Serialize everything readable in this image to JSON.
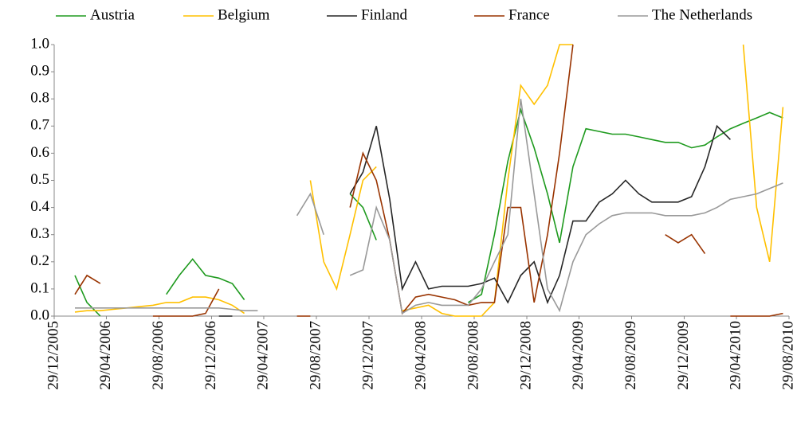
{
  "chart_data": {
    "type": "line",
    "x": [
      "15/01/2006",
      "15/02/2006",
      "15/03/2006",
      "15/04/2006",
      "15/05/2006",
      "15/06/2006",
      "15/07/2006",
      "15/08/2006",
      "15/09/2006",
      "15/10/2006",
      "15/11/2006",
      "15/12/2006",
      "15/01/2007",
      "15/02/2007",
      "15/03/2007",
      "15/04/2007",
      "15/05/2007",
      "15/06/2007",
      "15/07/2007",
      "15/08/2007",
      "15/09/2007",
      "15/10/2007",
      "15/11/2007",
      "15/12/2007",
      "15/01/2008",
      "15/02/2008",
      "15/03/2008",
      "15/04/2008",
      "15/05/2008",
      "15/06/2008",
      "15/07/2008",
      "15/08/2008",
      "15/09/2008",
      "15/10/2008",
      "15/11/2008",
      "15/12/2008",
      "15/01/2009",
      "15/02/2009",
      "15/03/2009",
      "15/04/2009",
      "15/05/2009",
      "15/06/2009",
      "15/07/2009",
      "15/08/2009",
      "15/09/2009",
      "15/10/2009",
      "15/11/2009",
      "15/12/2009",
      "15/01/2010",
      "15/02/2010",
      "15/03/2010",
      "15/04/2010",
      "15/05/2010",
      "15/06/2010",
      "15/07/2010",
      "15/08/2010"
    ],
    "series": [
      {
        "name": "Austria",
        "color": "#1e9a1e",
        "values": [
          null,
          0.15,
          0.05,
          0,
          null,
          null,
          null,
          null,
          0.08,
          0.15,
          0.21,
          0.15,
          0.14,
          0.12,
          0.06,
          null,
          null,
          null,
          null,
          null,
          null,
          null,
          0.45,
          0.4,
          0.28,
          null,
          null,
          null,
          null,
          null,
          null,
          0.05,
          0.08,
          0.3,
          0.57,
          0.76,
          0.62,
          0.45,
          0.27,
          0.55,
          0.69,
          0.68,
          0.67,
          0.67,
          0.66,
          0.65,
          0.64,
          0.64,
          0.62,
          0.63,
          0.66,
          0.69,
          0.71,
          0.73,
          0.75,
          0.73
        ]
      },
      {
        "name": "Belgium",
        "color": "#ffc000",
        "values": [
          null,
          0.015,
          0.02,
          0.02,
          0.025,
          0.03,
          0.035,
          0.04,
          0.05,
          0.05,
          0.07,
          0.07,
          0.06,
          0.04,
          0.01,
          null,
          null,
          null,
          null,
          0.5,
          0.2,
          0.1,
          0.3,
          0.5,
          0.55,
          null,
          0.02,
          0.03,
          0.04,
          0.01,
          0,
          0,
          0,
          0.05,
          0.5,
          0.85,
          0.78,
          0.85,
          1.0,
          1.0,
          null,
          null,
          null,
          null,
          null,
          null,
          null,
          null,
          null,
          null,
          null,
          null,
          1.0,
          0.4,
          0.2,
          0.77
        ]
      },
      {
        "name": "Finland",
        "color": "#262626",
        "values": [
          null,
          null,
          null,
          null,
          null,
          null,
          null,
          null,
          null,
          null,
          null,
          null,
          0,
          0,
          null,
          null,
          null,
          null,
          null,
          null,
          null,
          null,
          0.45,
          0.53,
          0.7,
          0.43,
          0.1,
          0.2,
          0.1,
          0.11,
          0.11,
          0.11,
          0.12,
          0.14,
          0.05,
          0.15,
          0.2,
          0.05,
          0.15,
          0.35,
          0.35,
          0.42,
          0.45,
          0.5,
          0.45,
          0.42,
          0.42,
          0.42,
          0.44,
          0.55,
          0.7,
          0.65,
          null,
          null,
          null,
          null
        ]
      },
      {
        "name": "France",
        "color": "#993300",
        "values": [
          null,
          0.08,
          0.15,
          0.12,
          null,
          null,
          null,
          0,
          0,
          0,
          0,
          0.01,
          0.1,
          null,
          null,
          null,
          null,
          null,
          0,
          0,
          null,
          null,
          0.4,
          0.6,
          0.5,
          0.28,
          0.01,
          0.07,
          0.08,
          0.07,
          0.06,
          0.04,
          0.05,
          0.05,
          0.4,
          0.4,
          0.05,
          0.3,
          0.6,
          1.0,
          null,
          null,
          null,
          null,
          null,
          null,
          0.3,
          0.27,
          0.3,
          0.23,
          null,
          0,
          0,
          0,
          0,
          0.01
        ]
      },
      {
        "name": "The Netherlands",
        "color": "#999999",
        "values": [
          null,
          0.03,
          0.03,
          0.03,
          0.03,
          0.03,
          0.03,
          0.03,
          0.03,
          0.03,
          0.03,
          0.03,
          0.03,
          0.025,
          0.02,
          0.02,
          null,
          null,
          0.37,
          0.45,
          0.3,
          null,
          0.15,
          0.17,
          0.4,
          0.28,
          0.01,
          0.04,
          0.05,
          0.04,
          0.04,
          0.04,
          0.1,
          0.2,
          0.3,
          0.8,
          0.45,
          0.1,
          0.02,
          0.2,
          0.3,
          0.34,
          0.37,
          0.38,
          0.38,
          0.38,
          0.37,
          0.37,
          0.37,
          0.38,
          0.4,
          0.43,
          0.44,
          0.45,
          0.47,
          0.49
        ]
      }
    ],
    "xlim": [
      "29/12/2005",
      "29/08/2010"
    ],
    "xticks": [
      "29/12/2005",
      "29/04/2006",
      "29/08/2006",
      "29/12/2006",
      "29/04/2007",
      "29/08/2007",
      "29/12/2007",
      "29/04/2008",
      "29/08/2008",
      "29/12/2008",
      "29/04/2009",
      "29/08/2009",
      "29/12/2009",
      "29/04/2010",
      "29/08/2010"
    ],
    "ylim": [
      0,
      1
    ],
    "yticks": [
      {
        "value": 0,
        "label": "0.0"
      },
      0.1,
      0.2,
      0.3,
      0.4,
      0.5,
      0.6,
      0.7,
      0.8,
      0.9,
      {
        "value": 1,
        "label": "1.0"
      }
    ],
    "legend": "top",
    "grid": false
  }
}
